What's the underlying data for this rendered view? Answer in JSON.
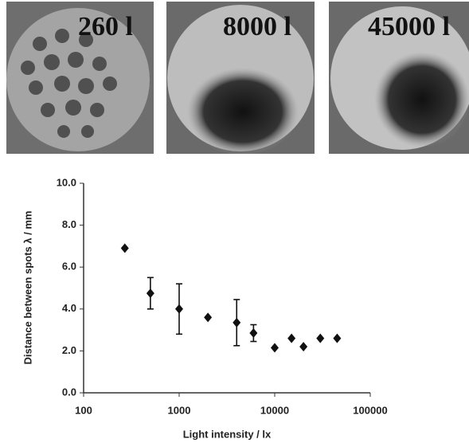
{
  "photos": [
    {
      "label": "260 l"
    },
    {
      "label": "8000 l"
    },
    {
      "label": "45000 l"
    }
  ],
  "chart_data": {
    "type": "scatter",
    "x_label": "Light intensity  / lx",
    "y_label": "Distance between spots  λ / mm",
    "x": [
      270,
      500,
      1000,
      2000,
      4000,
      6000,
      10000,
      15000,
      20000,
      30000,
      45000
    ],
    "values": [
      6.9,
      4.75,
      4.0,
      3.6,
      3.35,
      2.85,
      2.15,
      2.6,
      2.2,
      2.6,
      2.6
    ],
    "errors": [
      null,
      0.75,
      1.2,
      null,
      1.1,
      0.4,
      null,
      null,
      null,
      null,
      null
    ],
    "color": "#111111",
    "xlog": true,
    "xlim": [
      100,
      100000
    ],
    "xticks": [
      100,
      1000,
      10000,
      100000
    ],
    "ylim": [
      0,
      10
    ],
    "yticks": [
      {
        "value": 0,
        "label": "0.0"
      },
      {
        "value": 2,
        "label": "2.0"
      },
      {
        "value": 4,
        "label": "4.0"
      },
      {
        "value": 6,
        "label": "6.0"
      },
      {
        "value": 8,
        "label": "8.0"
      },
      {
        "value": 10,
        "label": "10.0"
      }
    ]
  }
}
